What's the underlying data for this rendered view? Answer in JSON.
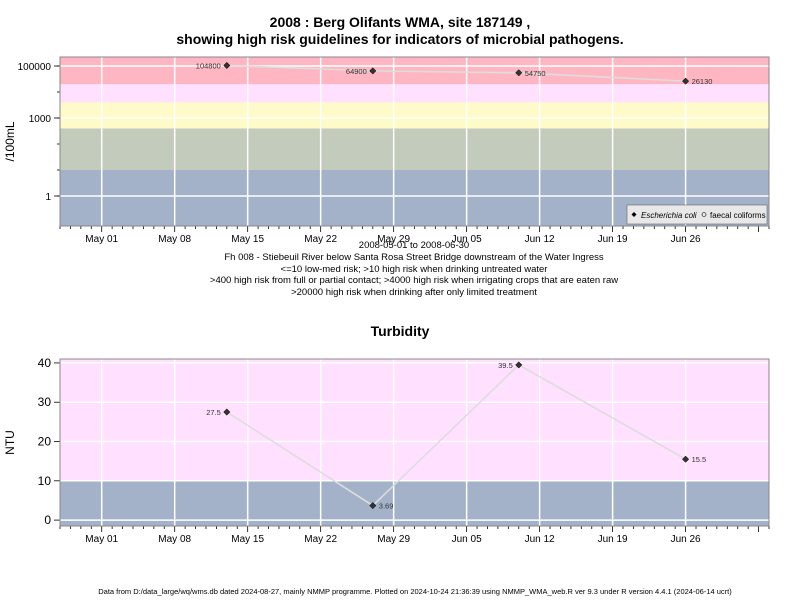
{
  "titles": {
    "line1": "2008 : Berg Olifants WMA, site 187149 ,",
    "line2": "showing high risk guidelines for indicators of microbial pathogens.",
    "turbidity": "Turbidity"
  },
  "notes": [
    "2008-05-01 to 2008-06-30",
    "Fh 008 - Stiebeuil River below Santa Rosa Street Bridge downstream of the Water Ingress",
    "<=10 low-med risk; >10 high risk when drinking untreated water",
    ">400 high risk from full or partial contact; >4000 high risk when irrigating crops that are eaten raw",
    ">20000 high risk when drinking after only limited treatment"
  ],
  "footer": "Data from D:/data_large/wq/wms.db dated 2024-08-27, mainly NMMP programme. Plotted on 2024-10-24 21:36:39 using NMMP_WMA_web.R ver 9.3 under R version 4.4.1 (2024-06-14 ucrt)",
  "colors": {
    "band_low": "#a3b2c8",
    "band_green": "#c3cbbc",
    "band_yellow": "#fffbc8",
    "band_pink_light": "#ffe0ff",
    "band_pink": "#ffb6c3",
    "gridline": "#ffffff",
    "series_line": "#dddddd",
    "marker": "#333333",
    "turbidity_high": "#ffe0ff",
    "turbidity_low": "#a3b2c8"
  },
  "chart_data": [
    {
      "type": "scatter",
      "scale_y": "log",
      "ylabel": "/100mL",
      "x_range": [
        "2008-04-27",
        "2008-07-04"
      ],
      "xticks": [
        "May 01",
        "May 08",
        "May 15",
        "May 22",
        "May 29",
        "Jun 05",
        "Jun 12",
        "Jun 19",
        "Jun 26"
      ],
      "yticks": [
        "1",
        "1000",
        "100000"
      ],
      "risk_bands": [
        10,
        400,
        4000,
        20000
      ],
      "legend": {
        "position": "bottom-right",
        "items": [
          "Escherichia coli",
          "faecal coliforms"
        ]
      },
      "series": [
        {
          "name": "Escherichia coli",
          "x": [
            "2008-05-13",
            "2008-05-27",
            "2008-06-10",
            "2008-06-26"
          ],
          "values": [
            104800,
            64900,
            54750,
            26130
          ],
          "labels": [
            "104800",
            "64900",
            "54750",
            "26130"
          ]
        }
      ]
    },
    {
      "type": "line",
      "title": "Turbidity",
      "ylabel": "NTU",
      "x_range": [
        "2008-04-27",
        "2008-07-04"
      ],
      "ylim": [
        -1.5,
        41
      ],
      "xticks": [
        "May 01",
        "May 08",
        "May 15",
        "May 22",
        "May 29",
        "Jun 05",
        "Jun 12",
        "Jun 19",
        "Jun 26"
      ],
      "yticks": [
        "0",
        "10",
        "20",
        "30",
        "40"
      ],
      "risk_bands": [
        10
      ],
      "series": [
        {
          "x": [
            "2008-05-13",
            "2008-05-27",
            "2008-06-10",
            "2008-06-26"
          ],
          "values": [
            27.5,
            3.69,
            39.5,
            15.5
          ],
          "labels": [
            "27.5",
            "3.69",
            "39.5",
            "15.5"
          ]
        }
      ]
    }
  ]
}
